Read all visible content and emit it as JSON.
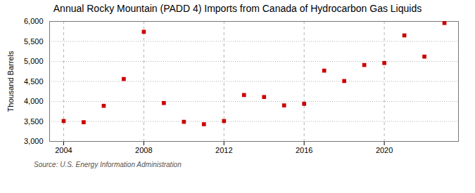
{
  "chart_data": {
    "type": "scatter",
    "title": "Annual Rocky Mountain (PADD 4) Imports from Canada of Hydrocarbon Gas Liquids",
    "ylabel": "Thousand Barrels",
    "source": "Source: U.S. Energy Information Administration",
    "x": [
      2004,
      2005,
      2006,
      2007,
      2008,
      2009,
      2010,
      2011,
      2012,
      2013,
      2014,
      2015,
      2016,
      2017,
      2018,
      2019,
      2020,
      2021,
      2022,
      2023
    ],
    "values": [
      3510,
      3480,
      3890,
      4560,
      5740,
      3960,
      3490,
      3430,
      3510,
      4160,
      4110,
      3900,
      3940,
      4770,
      4510,
      4910,
      4960,
      5650,
      5120,
      5960
    ],
    "color": "#cc0000",
    "marker": "square",
    "xlim": [
      2003.3,
      2023.7
    ],
    "xticks": [
      2004,
      2008,
      2012,
      2016,
      2020
    ],
    "ylim": [
      3000,
      6000
    ],
    "yticks": [
      {
        "value": 3000,
        "label": "3,000"
      },
      {
        "value": 3500,
        "label": "3,500"
      },
      {
        "value": 4000,
        "label": "4,000"
      },
      {
        "value": 4500,
        "label": "4,500"
      },
      {
        "value": 5000,
        "label": "5,000"
      },
      {
        "value": 5500,
        "label": "5,500"
      },
      {
        "value": 6000,
        "label": "6,000"
      }
    ],
    "grid": true
  }
}
